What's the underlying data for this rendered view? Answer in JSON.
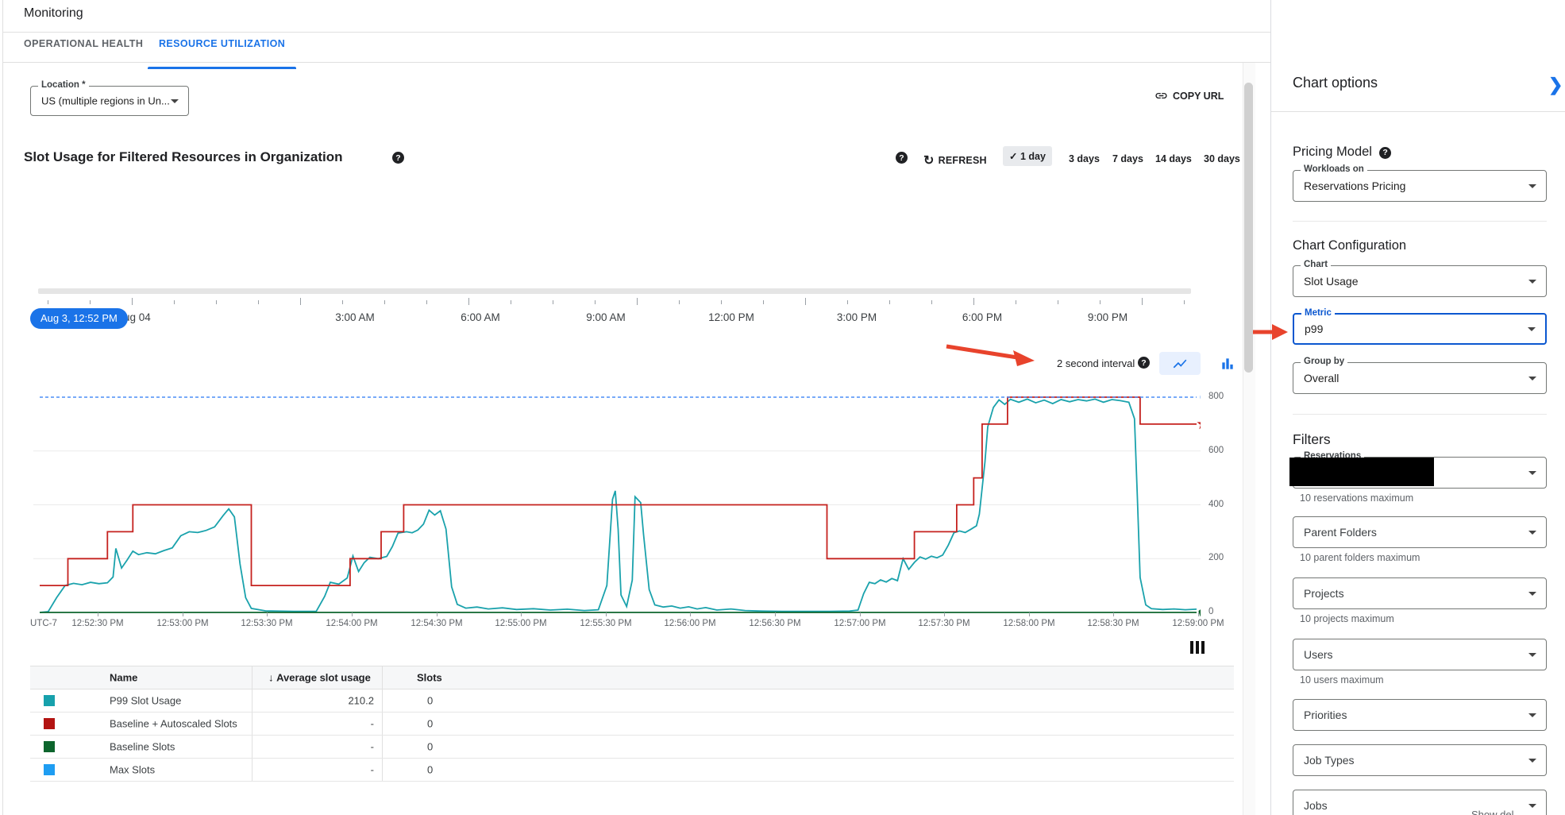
{
  "header": {
    "title": "Monitoring"
  },
  "tabs": [
    {
      "label": "OPERATIONAL HEALTH",
      "active": false
    },
    {
      "label": "RESOURCE UTILIZATION",
      "active": true
    }
  ],
  "toolbar": {
    "location_label": "Location *",
    "location_value": "US (multiple regions in Un...",
    "copy_url": "COPY URL"
  },
  "chart_header": {
    "title": "Slot Usage for Filtered Resources in Organization",
    "refresh": "REFRESH",
    "ranges": [
      "1 day",
      "3 days",
      "7 days",
      "14 days",
      "30 days"
    ],
    "selected_range": "1 day"
  },
  "timeline": {
    "chip": "Aug 3, 12:52 PM",
    "labels": [
      "Aug 04",
      "3:00 AM",
      "6:00 AM",
      "9:00 AM",
      "12:00 PM",
      "3:00 PM",
      "6:00 PM",
      "9:00 PM"
    ]
  },
  "interval": {
    "label": "2 second interval"
  },
  "chart_data": {
    "type": "line",
    "title": "Slot Usage for Filtered Resources in Organization",
    "x_axis": {
      "corner_label": "UTC-7",
      "tick_interval_seconds": 30,
      "first_tick_offset_seconds": 20,
      "span_seconds": 410,
      "ticks": [
        "12:52:30 PM",
        "12:53:00 PM",
        "12:53:30 PM",
        "12:54:00 PM",
        "12:54:30 PM",
        "12:55:00 PM",
        "12:55:30 PM",
        "12:56:00 PM",
        "12:56:30 PM",
        "12:57:00 PM",
        "12:57:30 PM",
        "12:58:00 PM",
        "12:58:30 PM",
        "12:59:00 PM"
      ]
    },
    "y_axis": {
      "ticks": [
        0,
        200,
        400,
        600,
        800
      ],
      "max": 800,
      "grid_at": [
        200,
        400,
        600
      ]
    },
    "series": [
      {
        "name": "P99 Slot Usage",
        "color": "#1aa2ac",
        "style": "solid",
        "end_marker": "none",
        "points": [
          [
            0,
            0
          ],
          [
            3,
            3
          ],
          [
            6,
            55
          ],
          [
            9,
            100
          ],
          [
            12,
            108
          ],
          [
            15,
            103
          ],
          [
            18,
            112
          ],
          [
            21,
            107
          ],
          [
            24,
            110
          ],
          [
            26,
            132
          ],
          [
            27,
            238
          ],
          [
            29,
            165
          ],
          [
            31,
            195
          ],
          [
            33,
            228
          ],
          [
            35,
            215
          ],
          [
            38,
            222
          ],
          [
            41,
            218
          ],
          [
            44,
            230
          ],
          [
            47,
            240
          ],
          [
            50,
            285
          ],
          [
            53,
            300
          ],
          [
            56,
            297
          ],
          [
            59,
            305
          ],
          [
            62,
            318
          ],
          [
            65,
            360
          ],
          [
            67,
            385
          ],
          [
            69,
            355
          ],
          [
            71,
            180
          ],
          [
            73,
            55
          ],
          [
            75,
            15
          ],
          [
            80,
            6
          ],
          [
            90,
            4
          ],
          [
            98,
            4
          ],
          [
            101,
            60
          ],
          [
            103,
            112
          ],
          [
            106,
            105
          ],
          [
            109,
            128
          ],
          [
            111,
            210
          ],
          [
            113,
            152
          ],
          [
            115,
            185
          ],
          [
            117,
            205
          ],
          [
            120,
            200
          ],
          [
            123,
            208
          ],
          [
            125,
            245
          ],
          [
            127,
            295
          ],
          [
            130,
            300
          ],
          [
            132,
            296
          ],
          [
            134,
            306
          ],
          [
            136,
            328
          ],
          [
            138,
            380
          ],
          [
            140,
            362
          ],
          [
            142,
            378
          ],
          [
            144,
            310
          ],
          [
            146,
            95
          ],
          [
            148,
            30
          ],
          [
            151,
            16
          ],
          [
            155,
            20
          ],
          [
            159,
            13
          ],
          [
            164,
            17
          ],
          [
            169,
            11
          ],
          [
            175,
            14
          ],
          [
            181,
            9
          ],
          [
            187,
            12
          ],
          [
            193,
            7
          ],
          [
            198,
            10
          ],
          [
            201,
            100
          ],
          [
            203,
            420
          ],
          [
            204,
            452
          ],
          [
            205,
            310
          ],
          [
            206,
            65
          ],
          [
            208,
            22
          ],
          [
            210,
            120
          ],
          [
            211,
            430
          ],
          [
            213,
            408
          ],
          [
            214,
            290
          ],
          [
            216,
            85
          ],
          [
            218,
            28
          ],
          [
            221,
            20
          ],
          [
            224,
            24
          ],
          [
            227,
            16
          ],
          [
            230,
            21
          ],
          [
            233,
            13
          ],
          [
            236,
            18
          ],
          [
            240,
            9
          ],
          [
            245,
            13
          ],
          [
            250,
            7
          ],
          [
            256,
            5
          ],
          [
            263,
            4
          ],
          [
            271,
            4
          ],
          [
            280,
            4
          ],
          [
            287,
            5
          ],
          [
            290,
            9
          ],
          [
            292,
            70
          ],
          [
            294,
            112
          ],
          [
            296,
            107
          ],
          [
            298,
            121
          ],
          [
            300,
            113
          ],
          [
            302,
            126
          ],
          [
            304,
            118
          ],
          [
            306,
            200
          ],
          [
            308,
            160
          ],
          [
            310,
            186
          ],
          [
            312,
            206
          ],
          [
            314,
            198
          ],
          [
            316,
            209
          ],
          [
            318,
            203
          ],
          [
            320,
            213
          ],
          [
            322,
            250
          ],
          [
            324,
            296
          ],
          [
            326,
            303
          ],
          [
            328,
            297
          ],
          [
            330,
            309
          ],
          [
            332,
            322
          ],
          [
            333,
            365
          ],
          [
            335,
            560
          ],
          [
            336,
            690
          ],
          [
            338,
            762
          ],
          [
            340,
            790
          ],
          [
            342,
            773
          ],
          [
            344,
            792
          ],
          [
            347,
            781
          ],
          [
            350,
            793
          ],
          [
            353,
            779
          ],
          [
            356,
            789
          ],
          [
            359,
            776
          ],
          [
            362,
            791
          ],
          [
            365,
            783
          ],
          [
            368,
            791
          ],
          [
            371,
            786
          ],
          [
            374,
            793
          ],
          [
            377,
            781
          ],
          [
            380,
            791
          ],
          [
            383,
            787
          ],
          [
            386,
            781
          ],
          [
            388,
            720
          ],
          [
            389,
            430
          ],
          [
            390,
            130
          ],
          [
            392,
            28
          ],
          [
            394,
            14
          ],
          [
            398,
            11
          ],
          [
            402,
            13
          ],
          [
            406,
            10
          ],
          [
            410,
            12
          ]
        ]
      },
      {
        "name": "Baseline + Autoscaled Slots",
        "color": "#c5221f",
        "style": "step",
        "end_marker": "star",
        "points": [
          [
            0,
            100
          ],
          [
            10,
            100
          ],
          [
            10,
            200
          ],
          [
            24,
            200
          ],
          [
            24,
            300
          ],
          [
            33,
            300
          ],
          [
            33,
            400
          ],
          [
            75,
            400
          ],
          [
            75,
            100
          ],
          [
            110,
            100
          ],
          [
            110,
            200
          ],
          [
            121,
            200
          ],
          [
            121,
            300
          ],
          [
            129,
            300
          ],
          [
            129,
            400
          ],
          [
            279,
            400
          ],
          [
            279,
            200
          ],
          [
            310,
            200
          ],
          [
            310,
            300
          ],
          [
            325,
            300
          ],
          [
            325,
            400
          ],
          [
            331,
            400
          ],
          [
            331,
            500
          ],
          [
            334,
            500
          ],
          [
            334,
            700
          ],
          [
            343,
            700
          ],
          [
            343,
            800
          ],
          [
            390,
            800
          ],
          [
            390,
            700
          ],
          [
            410,
            700
          ]
        ]
      },
      {
        "name": "Baseline Slots",
        "color": "#0d652d",
        "style": "solid",
        "end_marker": "pentagon",
        "points": [
          [
            0,
            0
          ],
          [
            410,
            0
          ]
        ]
      },
      {
        "name": "Max Slots",
        "color": "#4c8df6",
        "style": "dashed",
        "end_marker": "drop",
        "marker_color": "#1a73e8",
        "points": [
          [
            0,
            800
          ],
          [
            410,
            800
          ]
        ]
      }
    ]
  },
  "table": {
    "columns": [
      "Name",
      "Average slot usage",
      "Slots"
    ],
    "sort_column": "Average slot usage",
    "rows": [
      {
        "color": "#17a1ac",
        "name": "P99 Slot Usage",
        "avg": "210.2",
        "slots": "0"
      },
      {
        "color": "#b31412",
        "name": "Baseline + Autoscaled Slots",
        "avg": "-",
        "slots": "0"
      },
      {
        "color": "#0d652d",
        "name": "Baseline Slots",
        "avg": "-",
        "slots": "0"
      },
      {
        "color": "#1e9df2",
        "name": "Max Slots",
        "avg": "-",
        "slots": "0"
      }
    ]
  },
  "panel": {
    "title": "Chart options",
    "pricing": {
      "heading": "Pricing Model",
      "field_label": "Workloads on",
      "field_value": "Reservations Pricing"
    },
    "config": {
      "heading": "Chart Configuration",
      "fields": [
        {
          "label": "Chart",
          "value": "Slot Usage",
          "focused": false
        },
        {
          "label": "Metric",
          "value": "p99",
          "focused": true
        },
        {
          "label": "Group by",
          "value": "Overall",
          "focused": false
        }
      ]
    },
    "filters": {
      "heading": "Filters",
      "items": [
        {
          "label": "Reservations",
          "value": "",
          "redacted": true,
          "helper": "10 reservations maximum"
        },
        {
          "placeholder": "Parent Folders",
          "helper": "10 parent folders maximum"
        },
        {
          "placeholder": "Projects",
          "helper": "10 projects maximum"
        },
        {
          "placeholder": "Users",
          "helper": "10 users maximum"
        },
        {
          "placeholder": "Priorities",
          "helper": ""
        },
        {
          "placeholder": "Job Types",
          "helper": ""
        },
        {
          "placeholder": "Jobs",
          "helper": ""
        }
      ]
    },
    "partial_bottom_text": "Show del"
  },
  "annotations": {
    "arrow_color": "#e8432c"
  }
}
